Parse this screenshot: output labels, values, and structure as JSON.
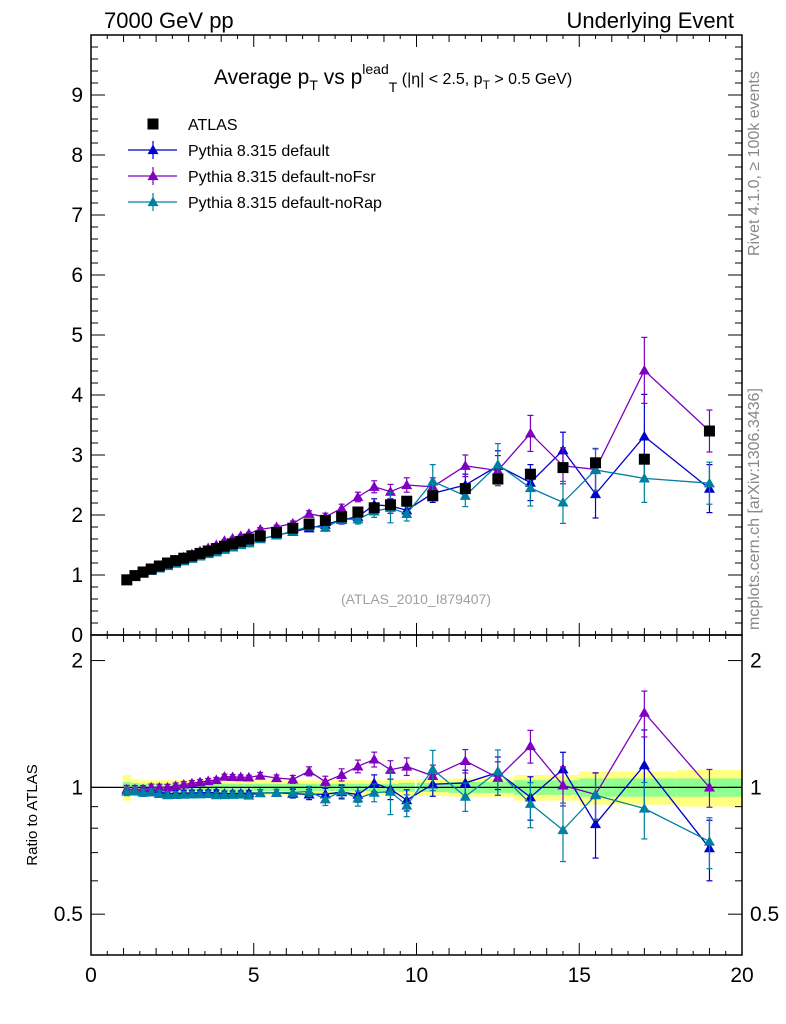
{
  "header": {
    "left": "7000 GeV pp",
    "right": "Underlying Event",
    "side_top": "Rivet 4.1.0, ≥ 100k events",
    "side_bottom": "mcplots.cern.ch [arXiv:1306.3436]"
  },
  "chart_data": {
    "type": "scatter",
    "title_parts": {
      "main": "Average p",
      "sub1": "T",
      "mid": " vs p",
      "sup": "lead",
      "sub2": "T",
      "cut_open": " (|η| < 2.5, p",
      "cut_sub": "T",
      "cut_close": " > 0.5 GeV)"
    },
    "watermark": "(ATLAS_2010_I879407)",
    "ratio_ylabel": "Ratio to ATLAS",
    "xlim": [
      0,
      20
    ],
    "ylim": [
      0,
      10
    ],
    "ratio_ylim": [
      0.4,
      2.3
    ],
    "x_ticks": [
      "0",
      "5",
      "10",
      "15",
      "20"
    ],
    "y_ticks": [
      "0",
      "1",
      "2",
      "3",
      "4",
      "5",
      "6",
      "7",
      "8",
      "9"
    ],
    "ratio_ticks": [
      "0.5",
      "1",
      "2"
    ],
    "x": [
      1.1,
      1.35,
      1.6,
      1.85,
      2.1,
      2.35,
      2.6,
      2.85,
      3.1,
      3.35,
      3.6,
      3.85,
      4.1,
      4.35,
      4.6,
      4.85,
      5.2,
      5.7,
      6.2,
      6.7,
      7.2,
      7.7,
      8.2,
      8.7,
      9.2,
      9.7,
      10.5,
      11.5,
      12.5,
      13.5,
      14.5,
      15.5,
      17.0,
      19.0
    ],
    "xerr": [
      0.125,
      0.125,
      0.125,
      0.125,
      0.125,
      0.125,
      0.125,
      0.125,
      0.125,
      0.125,
      0.125,
      0.125,
      0.125,
      0.125,
      0.125,
      0.125,
      0.25,
      0.25,
      0.25,
      0.25,
      0.25,
      0.25,
      0.25,
      0.25,
      0.25,
      0.25,
      0.5,
      0.5,
      0.5,
      0.5,
      0.5,
      0.5,
      1.0,
      1.0
    ],
    "band_stat": [
      0.03,
      0.025,
      0.02,
      0.02,
      0.02,
      0.02,
      0.02,
      0.02,
      0.02,
      0.02,
      0.02,
      0.02,
      0.02,
      0.02,
      0.02,
      0.02,
      0.02,
      0.02,
      0.02,
      0.02,
      0.02,
      0.02,
      0.02,
      0.02,
      0.02,
      0.025,
      0.025,
      0.03,
      0.03,
      0.04,
      0.04,
      0.05,
      0.05,
      0.05
    ],
    "band_total": [
      0.07,
      0.045,
      0.04,
      0.04,
      0.04,
      0.04,
      0.04,
      0.04,
      0.04,
      0.04,
      0.04,
      0.04,
      0.04,
      0.04,
      0.04,
      0.04,
      0.04,
      0.04,
      0.04,
      0.04,
      0.04,
      0.04,
      0.04,
      0.04,
      0.04,
      0.045,
      0.045,
      0.05,
      0.05,
      0.07,
      0.07,
      0.09,
      0.09,
      0.1
    ],
    "series": [
      {
        "name": "ATLAS",
        "marker": "square",
        "color": "#000000",
        "values": [
          0.92,
          0.99,
          1.05,
          1.1,
          1.15,
          1.2,
          1.24,
          1.28,
          1.32,
          1.36,
          1.4,
          1.44,
          1.48,
          1.52,
          1.56,
          1.6,
          1.65,
          1.71,
          1.78,
          1.85,
          1.91,
          1.97,
          2.05,
          2.12,
          2.17,
          2.23,
          2.32,
          2.44,
          2.6,
          2.68,
          2.79,
          2.87,
          2.93,
          3.4
        ],
        "err": [
          0,
          0,
          0,
          0,
          0,
          0,
          0,
          0,
          0,
          0,
          0,
          0,
          0,
          0,
          0,
          0,
          0,
          0,
          0,
          0,
          0,
          0,
          0,
          0,
          0,
          0,
          0,
          0,
          0,
          0,
          0,
          0,
          0,
          0
        ]
      },
      {
        "name": "Pythia 8.315 default",
        "marker": "triangle",
        "color": "#0000cc",
        "values": [
          0.9,
          0.97,
          1.03,
          1.07,
          1.12,
          1.16,
          1.2,
          1.24,
          1.28,
          1.32,
          1.36,
          1.4,
          1.43,
          1.47,
          1.51,
          1.55,
          1.6,
          1.66,
          1.72,
          1.78,
          1.84,
          1.92,
          1.97,
          2.17,
          2.15,
          2.08,
          2.36,
          2.5,
          2.82,
          2.54,
          3.08,
          2.35,
          3.31,
          2.44
        ],
        "err": [
          0.02,
          0.02,
          0.02,
          0.02,
          0.02,
          0.02,
          0.02,
          0.02,
          0.02,
          0.02,
          0.02,
          0.02,
          0.02,
          0.02,
          0.02,
          0.02,
          0.03,
          0.03,
          0.04,
          0.05,
          0.06,
          0.07,
          0.08,
          0.1,
          0.12,
          0.12,
          0.15,
          0.18,
          0.25,
          0.3,
          0.3,
          0.4,
          0.7,
          0.4
        ]
      },
      {
        "name": "Pythia 8.315 default-noFsr",
        "marker": "triangle",
        "color": "#7f00bf",
        "values": [
          0.91,
          0.98,
          1.04,
          1.1,
          1.15,
          1.2,
          1.25,
          1.3,
          1.35,
          1.4,
          1.45,
          1.5,
          1.57,
          1.61,
          1.65,
          1.69,
          1.76,
          1.8,
          1.86,
          2.02,
          1.97,
          2.11,
          2.3,
          2.47,
          2.39,
          2.5,
          2.47,
          2.82,
          2.74,
          3.36,
          2.82,
          2.76,
          4.41,
          3.4
        ],
        "err": [
          0.02,
          0.02,
          0.02,
          0.02,
          0.02,
          0.02,
          0.02,
          0.02,
          0.02,
          0.02,
          0.02,
          0.02,
          0.02,
          0.02,
          0.02,
          0.02,
          0.03,
          0.03,
          0.04,
          0.05,
          0.06,
          0.07,
          0.08,
          0.1,
          0.12,
          0.12,
          0.15,
          0.18,
          0.25,
          0.3,
          0.3,
          0.35,
          0.55,
          0.35
        ]
      },
      {
        "name": "Pythia 8.315 default-noRap",
        "marker": "triangle",
        "color": "#0080a0",
        "values": [
          0.9,
          0.97,
          1.02,
          1.07,
          1.11,
          1.15,
          1.19,
          1.23,
          1.27,
          1.31,
          1.35,
          1.38,
          1.42,
          1.46,
          1.5,
          1.53,
          1.6,
          1.66,
          1.73,
          1.81,
          1.79,
          1.93,
          1.93,
          2.06,
          2.12,
          2.02,
          2.56,
          2.32,
          2.84,
          2.45,
          2.21,
          2.75,
          2.61,
          2.53
        ],
        "err": [
          0.02,
          0.02,
          0.02,
          0.02,
          0.02,
          0.02,
          0.02,
          0.02,
          0.02,
          0.02,
          0.02,
          0.02,
          0.02,
          0.02,
          0.02,
          0.02,
          0.03,
          0.03,
          0.04,
          0.05,
          0.06,
          0.07,
          0.08,
          0.1,
          0.25,
          0.12,
          0.28,
          0.18,
          0.35,
          0.3,
          0.35,
          0.35,
          0.4,
          0.35
        ]
      }
    ]
  }
}
